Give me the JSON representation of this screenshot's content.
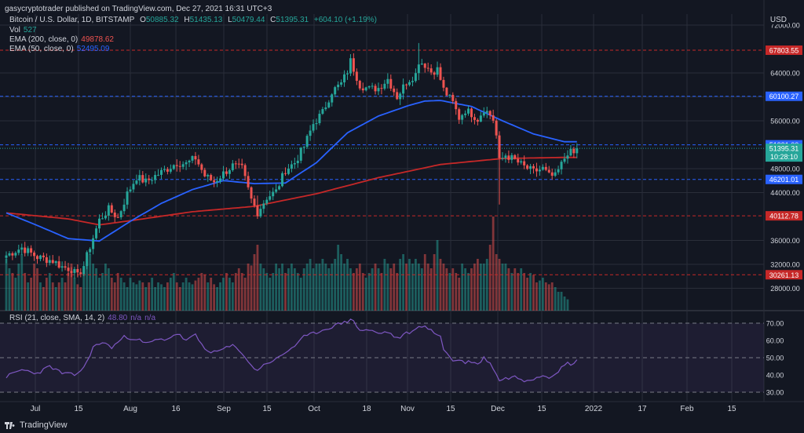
{
  "header": {
    "publish_line": "gasycryptotrader published on TradingView.com, Dec 27, 2021 16:31 UTC+3"
  },
  "legend": {
    "symbol": "Bitcoin / U.S. Dollar, 1D, BITSTAMP",
    "o_label": "O",
    "o_value": "50885.32",
    "h_label": "H",
    "h_value": "51435.13",
    "l_label": "L",
    "l_value": "50479.44",
    "c_label": "C",
    "c_value": "51395.31",
    "change": "+604.10 (+1.19%)",
    "vol_label": "Vol",
    "vol_value": "527",
    "ema200_label": "EMA (200, close, 0)",
    "ema200_value": "49878.62",
    "ema50_label": "EMA (50, close, 0)",
    "ema50_value": "52495.09",
    "rsi_label": "RSI (21, close, SMA, 14, 2)",
    "rsi_value": "48.80",
    "rsi_na1": "n/a",
    "rsi_na2": "n/a"
  },
  "currency": "USD",
  "brand": "TradingView",
  "colors": {
    "background": "#131722",
    "grid": "#2a2e39",
    "text": "#d1d4dc",
    "up": "#26a69a",
    "down": "#ef5350",
    "ema50": "#2962ff",
    "ema200": "#c62828",
    "rsi": "#7e57c2",
    "level_red": "#c62828",
    "level_blue": "#2962ff",
    "price_tag": "#26a69a"
  },
  "chart_data": {
    "type": "candlestick",
    "y_ticks": [
      "72000.00",
      "64000.00",
      "60000.00",
      "56000.00",
      "48000.00",
      "44000.00",
      "36000.00",
      "32000.00",
      "28000.00"
    ],
    "x_ticks": [
      "Jul",
      "15",
      "Aug",
      "16",
      "Sep",
      "15",
      "Oct",
      "18",
      "Nov",
      "15",
      "Dec",
      "15",
      "2022",
      "17",
      "Feb",
      "15"
    ],
    "ylim": [
      24500,
      73500
    ],
    "levels": [
      {
        "value": 67803.55,
        "label": "67803.55",
        "color": "red"
      },
      {
        "value": 60100.27,
        "label": "60100.27",
        "color": "blue"
      },
      {
        "value": 51991.0,
        "label": "51991.00",
        "color": "blue"
      },
      {
        "value": 46201.01,
        "label": "46201.01",
        "color": "blue"
      },
      {
        "value": 40112.78,
        "label": "40112.78",
        "color": "red"
      },
      {
        "value": 30261.13,
        "label": "30261.13",
        "color": "red"
      }
    ],
    "current_price": {
      "value": 51395.31,
      "label": "51395.31",
      "countdown": "10:28:10"
    },
    "close_path": [
      [
        0,
        33500
      ],
      [
        5,
        34800
      ],
      [
        10,
        33200
      ],
      [
        15,
        32600
      ],
      [
        18,
        31600
      ],
      [
        21,
        31200
      ],
      [
        23,
        30000
      ],
      [
        25,
        31800
      ],
      [
        27,
        35000
      ],
      [
        30,
        39400
      ],
      [
        33,
        41200
      ],
      [
        36,
        39800
      ],
      [
        39,
        43800
      ],
      [
        42,
        46600
      ],
      [
        45,
        45800
      ],
      [
        48,
        46800
      ],
      [
        52,
        48000
      ],
      [
        55,
        49000
      ],
      [
        58,
        48800
      ],
      [
        61,
        49800
      ],
      [
        64,
        46800
      ],
      [
        67,
        45800
      ],
      [
        70,
        47200
      ],
      [
        73,
        48500
      ],
      [
        76,
        48000
      ],
      [
        79,
        42800
      ],
      [
        81,
        40700
      ],
      [
        84,
        43200
      ],
      [
        87,
        44200
      ],
      [
        90,
        47800
      ],
      [
        93,
        49000
      ],
      [
        96,
        51700
      ],
      [
        99,
        55500
      ],
      [
        102,
        57400
      ],
      [
        105,
        60900
      ],
      [
        108,
        62200
      ],
      [
        110,
        64300
      ],
      [
        111,
        66000
      ],
      [
        114,
        62000
      ],
      [
        117,
        61300
      ],
      [
        120,
        61500
      ],
      [
        123,
        63000
      ],
      [
        126,
        60000
      ],
      [
        129,
        62500
      ],
      [
        132,
        63800
      ],
      [
        133,
        66000
      ],
      [
        135,
        65400
      ],
      [
        137,
        64200
      ],
      [
        139,
        64600
      ],
      [
        141,
        61200
      ],
      [
        144,
        59000
      ],
      [
        146,
        56500
      ],
      [
        148,
        57800
      ],
      [
        150,
        57200
      ],
      [
        152,
        56300
      ],
      [
        154,
        58000
      ],
      [
        156,
        57000
      ],
      [
        157,
        56200
      ],
      [
        158,
        53500
      ],
      [
        159,
        49200
      ],
      [
        161,
        50300
      ],
      [
        164,
        49400
      ],
      [
        167,
        48300
      ],
      [
        170,
        47500
      ],
      [
        173,
        48000
      ],
      [
        175,
        46800
      ],
      [
        177,
        46700
      ],
      [
        179,
        48700
      ],
      [
        181,
        50800
      ],
      [
        183,
        50500
      ],
      [
        184,
        51395
      ]
    ],
    "wick_extremes": [
      {
        "i": 159,
        "low": 42000,
        "high": 53800
      },
      {
        "i": 81,
        "low": 39600,
        "high": 43500
      },
      {
        "i": 133,
        "low": 62800,
        "high": 69000
      }
    ],
    "ema50_path": [
      [
        0,
        40600
      ],
      [
        10,
        38500
      ],
      [
        20,
        36300
      ],
      [
        30,
        35900
      ],
      [
        40,
        39200
      ],
      [
        50,
        42200
      ],
      [
        60,
        44500
      ],
      [
        70,
        46000
      ],
      [
        80,
        45500
      ],
      [
        90,
        45600
      ],
      [
        100,
        49000
      ],
      [
        110,
        54000
      ],
      [
        120,
        56800
      ],
      [
        130,
        58600
      ],
      [
        135,
        59300
      ],
      [
        140,
        59400
      ],
      [
        150,
        58400
      ],
      [
        160,
        56000
      ],
      [
        170,
        53800
      ],
      [
        180,
        52495
      ]
    ],
    "ema200_path": [
      [
        0,
        40600
      ],
      [
        20,
        39600
      ],
      [
        30,
        38600
      ],
      [
        40,
        39300
      ],
      [
        60,
        40800
      ],
      [
        80,
        41700
      ],
      [
        100,
        43800
      ],
      [
        120,
        46500
      ],
      [
        140,
        48700
      ],
      [
        160,
        49700
      ],
      [
        180,
        49879
      ]
    ],
    "volume_note": "Volume bars along the bottom of the price pane; relative heights",
    "volume": [
      0.55,
      0.45,
      0.4,
      0.35,
      0.5,
      0.6,
      0.4,
      0.3,
      0.35,
      0.5,
      0.45,
      0.3,
      0.25,
      0.35,
      0.4,
      0.3,
      0.25,
      0.3,
      0.35,
      0.3,
      0.4,
      0.5,
      0.35,
      0.28,
      0.25,
      0.4,
      0.55,
      0.6,
      0.5,
      0.45,
      0.35,
      0.4,
      0.5,
      0.45,
      0.35,
      0.3,
      0.4,
      0.35,
      0.3,
      0.25,
      0.35,
      0.3,
      0.28,
      0.32,
      0.3,
      0.25,
      0.3,
      0.35,
      0.25,
      0.3,
      0.28,
      0.25,
      0.3,
      0.35,
      0.4,
      0.3,
      0.25,
      0.3,
      0.35,
      0.3,
      0.28,
      0.32,
      0.35,
      0.4,
      0.38,
      0.3,
      0.35,
      0.28,
      0.25,
      0.3,
      0.35,
      0.4,
      0.35,
      0.3,
      0.4,
      0.45,
      0.4,
      0.35,
      0.5,
      0.48,
      0.6,
      0.7,
      0.5,
      0.45,
      0.4,
      0.35,
      0.4,
      0.5,
      0.45,
      0.5,
      0.4,
      0.45,
      0.5,
      0.45,
      0.4,
      0.35,
      0.45,
      0.5,
      0.55,
      0.45,
      0.5,
      0.5,
      0.55,
      0.5,
      0.45,
      0.5,
      0.55,
      0.7,
      0.6,
      0.5,
      0.55,
      0.45,
      0.4,
      0.45,
      0.5,
      0.4,
      0.35,
      0.4,
      0.45,
      0.5,
      0.45,
      0.4,
      0.55,
      0.5,
      0.45,
      0.5,
      0.4,
      0.55,
      0.6,
      0.5,
      0.55,
      0.5,
      0.55,
      0.5,
      0.45,
      0.6,
      0.5,
      0.45,
      0.6,
      0.75,
      0.55,
      0.5,
      0.45,
      0.4,
      0.45,
      0.4,
      0.35,
      0.5,
      0.45,
      0.4,
      0.45,
      0.5,
      0.55,
      0.5,
      0.5,
      0.55,
      0.7,
      1.0,
      0.6,
      0.55,
      0.5,
      0.5,
      0.45,
      0.4,
      0.45,
      0.4,
      0.45,
      0.4,
      0.35,
      0.4,
      0.38,
      0.3,
      0.32,
      0.35,
      0.3,
      0.28,
      0.3,
      0.25,
      0.2,
      0.2,
      0.15,
      0.12
    ],
    "rsi": {
      "y_ticks": [
        "70.00",
        "60.00",
        "50.00",
        "40.00",
        "30.00"
      ],
      "ylim": [
        27,
        74
      ],
      "upper_band": 70,
      "lower_band": 30,
      "mid": 50,
      "path": [
        [
          0,
          39
        ],
        [
          5,
          43
        ],
        [
          10,
          41
        ],
        [
          14,
          45
        ],
        [
          18,
          41
        ],
        [
          22,
          40
        ],
        [
          25,
          44
        ],
        [
          28,
          56
        ],
        [
          31,
          59
        ],
        [
          34,
          56
        ],
        [
          38,
          62
        ],
        [
          42,
          61
        ],
        [
          45,
          58
        ],
        [
          48,
          60
        ],
        [
          52,
          61
        ],
        [
          55,
          64
        ],
        [
          58,
          60
        ],
        [
          61,
          63
        ],
        [
          64,
          55
        ],
        [
          67,
          53
        ],
        [
          70,
          55
        ],
        [
          73,
          57
        ],
        [
          76,
          53
        ],
        [
          79,
          45
        ],
        [
          81,
          43
        ],
        [
          84,
          47
        ],
        [
          87,
          49
        ],
        [
          90,
          53
        ],
        [
          93,
          57
        ],
        [
          96,
          62
        ],
        [
          99,
          64
        ],
        [
          102,
          66
        ],
        [
          105,
          68
        ],
        [
          108,
          70
        ],
        [
          110,
          71
        ],
        [
          111,
          73
        ],
        [
          114,
          66
        ],
        [
          117,
          66
        ],
        [
          120,
          64
        ],
        [
          123,
          65
        ],
        [
          126,
          61
        ],
        [
          129,
          64
        ],
        [
          132,
          66
        ],
        [
          133,
          69
        ],
        [
          136,
          67
        ],
        [
          138,
          64
        ],
        [
          140,
          63
        ],
        [
          141,
          55
        ],
        [
          144,
          48
        ],
        [
          146,
          49
        ],
        [
          148,
          47
        ],
        [
          150,
          48
        ],
        [
          152,
          46
        ],
        [
          154,
          50
        ],
        [
          156,
          47
        ],
        [
          157,
          44
        ],
        [
          158,
          40
        ],
        [
          159,
          37
        ],
        [
          161,
          38
        ],
        [
          164,
          39
        ],
        [
          167,
          37
        ],
        [
          170,
          38
        ],
        [
          173,
          40
        ],
        [
          175,
          39
        ],
        [
          177,
          41
        ],
        [
          179,
          44
        ],
        [
          181,
          47
        ],
        [
          183,
          46
        ],
        [
          184,
          48.8
        ]
      ]
    }
  }
}
